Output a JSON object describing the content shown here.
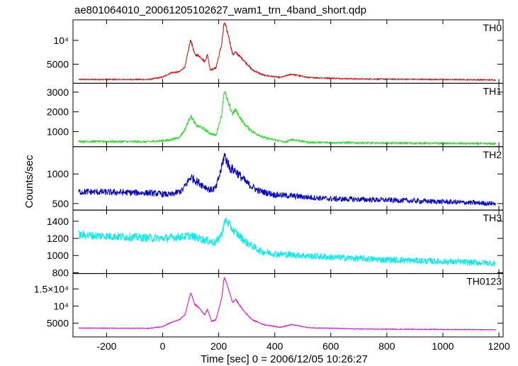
{
  "title": "ae801064010_20061205102627_wam1_trn_4band_short.qdp",
  "xlabel": "Time [sec] 0 = 2006/12/05 10:26:27",
  "ylabel": "Counts/sec",
  "chart_data": {
    "type": "line",
    "title": "ae801064010_20061205102627_wam1_trn_4band_short.qdp",
    "xlabel": "Time [sec] 0 = 2006/12/05 10:26:27",
    "ylabel": "Counts/sec",
    "xlim": [
      -320,
      1215
    ],
    "x_ticks": [
      "-200",
      "0",
      "200",
      "400",
      "600",
      "800",
      "1000",
      "1200"
    ],
    "x_tick_values": [
      -200,
      0,
      200,
      400,
      600,
      800,
      1000,
      1200
    ],
    "x_range": [
      -300,
      1190
    ],
    "grid": false,
    "panels": [
      {
        "name": "TH0",
        "color": "#dd0000",
        "ylim": [
          1000,
          14300
        ],
        "y_ticks": [
          {
            "value": 5000,
            "label": "5000"
          },
          {
            "value": 10000,
            "label": "10⁴"
          }
        ],
        "noise": 0.03,
        "noise_floor": 60,
        "profile": [
          [
            -300,
            1800
          ],
          [
            -50,
            1800
          ],
          [
            0,
            2300
          ],
          [
            30,
            3200
          ],
          [
            60,
            3400
          ],
          [
            80,
            4500
          ],
          [
            100,
            10200
          ],
          [
            115,
            7000
          ],
          [
            130,
            6800
          ],
          [
            150,
            5500
          ],
          [
            160,
            7000
          ],
          [
            170,
            3800
          ],
          [
            190,
            4200
          ],
          [
            210,
            9000
          ],
          [
            220,
            13800
          ],
          [
            235,
            11000
          ],
          [
            250,
            7000
          ],
          [
            260,
            7500
          ],
          [
            290,
            5800
          ],
          [
            320,
            3800
          ],
          [
            360,
            2700
          ],
          [
            420,
            2200
          ],
          [
            460,
            2900
          ],
          [
            520,
            2200
          ],
          [
            700,
            1900
          ],
          [
            1000,
            1800
          ],
          [
            1190,
            1700
          ]
        ]
      },
      {
        "name": "TH1",
        "color": "#22dd22",
        "ylim": [
          230,
          3450
        ],
        "y_ticks": [
          {
            "value": 1000,
            "label": "1000"
          },
          {
            "value": 2000,
            "label": "2000"
          },
          {
            "value": 3000,
            "label": "3000"
          }
        ],
        "noise": 0.04,
        "noise_floor": 30,
        "profile": [
          [
            -300,
            500
          ],
          [
            -50,
            480
          ],
          [
            20,
            550
          ],
          [
            60,
            700
          ],
          [
            80,
            1100
          ],
          [
            100,
            1800
          ],
          [
            120,
            1300
          ],
          [
            140,
            1200
          ],
          [
            170,
            900
          ],
          [
            190,
            800
          ],
          [
            210,
            1800
          ],
          [
            220,
            3100
          ],
          [
            235,
            2400
          ],
          [
            250,
            1900
          ],
          [
            260,
            2100
          ],
          [
            290,
            1400
          ],
          [
            320,
            1000
          ],
          [
            360,
            700
          ],
          [
            440,
            450
          ],
          [
            460,
            600
          ],
          [
            520,
            450
          ],
          [
            700,
            420
          ],
          [
            1000,
            400
          ],
          [
            1190,
            380
          ]
        ]
      },
      {
        "name": "TH2",
        "color": "#0000cc",
        "ylim": [
          390,
          1460
        ],
        "y_ticks": [
          {
            "value": 500,
            "label": "500"
          },
          {
            "value": 1000,
            "label": "1000"
          }
        ],
        "noise": 0.08,
        "noise_floor": 0,
        "profile": [
          [
            -300,
            700
          ],
          [
            -50,
            680
          ],
          [
            30,
            650
          ],
          [
            70,
            720
          ],
          [
            100,
            950
          ],
          [
            130,
            850
          ],
          [
            170,
            730
          ],
          [
            190,
            760
          ],
          [
            210,
            1100
          ],
          [
            220,
            1320
          ],
          [
            240,
            1100
          ],
          [
            260,
            1050
          ],
          [
            300,
            850
          ],
          [
            340,
            720
          ],
          [
            400,
            650
          ],
          [
            600,
            580
          ],
          [
            800,
            560
          ],
          [
            1000,
            530
          ],
          [
            1190,
            500
          ]
        ]
      },
      {
        "name": "TH3",
        "color": "#00eeee",
        "ylim": [
          790,
          1530
        ],
        "y_ticks": [
          {
            "value": 800,
            "label": "800"
          },
          {
            "value": 1000,
            "label": "1000"
          },
          {
            "value": 1200,
            "label": "1200"
          },
          {
            "value": 1400,
            "label": "1400"
          }
        ],
        "noise": 0.04,
        "noise_floor": 0,
        "profile": [
          [
            -300,
            1240
          ],
          [
            0,
            1200
          ],
          [
            100,
            1230
          ],
          [
            150,
            1180
          ],
          [
            190,
            1150
          ],
          [
            210,
            1250
          ],
          [
            225,
            1420
          ],
          [
            250,
            1300
          ],
          [
            300,
            1150
          ],
          [
            350,
            1050
          ],
          [
            400,
            1020
          ],
          [
            600,
            980
          ],
          [
            800,
            950
          ],
          [
            1000,
            930
          ],
          [
            1190,
            910
          ]
        ]
      },
      {
        "name": "TH0123",
        "color": "#dd00dd",
        "ylim": [
          1000,
          19500
        ],
        "y_ticks": [
          {
            "value": 5000,
            "label": "5000"
          },
          {
            "value": 10000,
            "label": "10⁴"
          },
          {
            "value": 15000,
            "label": "1.5×10⁴"
          }
        ],
        "noise": 0.015,
        "noise_floor": 40,
        "profile": [
          [
            -300,
            3600
          ],
          [
            -50,
            3500
          ],
          [
            0,
            4000
          ],
          [
            30,
            5200
          ],
          [
            60,
            6000
          ],
          [
            80,
            7500
          ],
          [
            100,
            14000
          ],
          [
            115,
            10500
          ],
          [
            130,
            9500
          ],
          [
            150,
            7500
          ],
          [
            160,
            9000
          ],
          [
            175,
            5500
          ],
          [
            190,
            6000
          ],
          [
            210,
            12000
          ],
          [
            220,
            18500
          ],
          [
            235,
            15000
          ],
          [
            250,
            11000
          ],
          [
            260,
            12000
          ],
          [
            290,
            8500
          ],
          [
            320,
            6000
          ],
          [
            360,
            4600
          ],
          [
            420,
            3800
          ],
          [
            460,
            4600
          ],
          [
            520,
            3700
          ],
          [
            700,
            3300
          ],
          [
            1000,
            3200
          ],
          [
            1190,
            3100
          ]
        ]
      }
    ]
  }
}
